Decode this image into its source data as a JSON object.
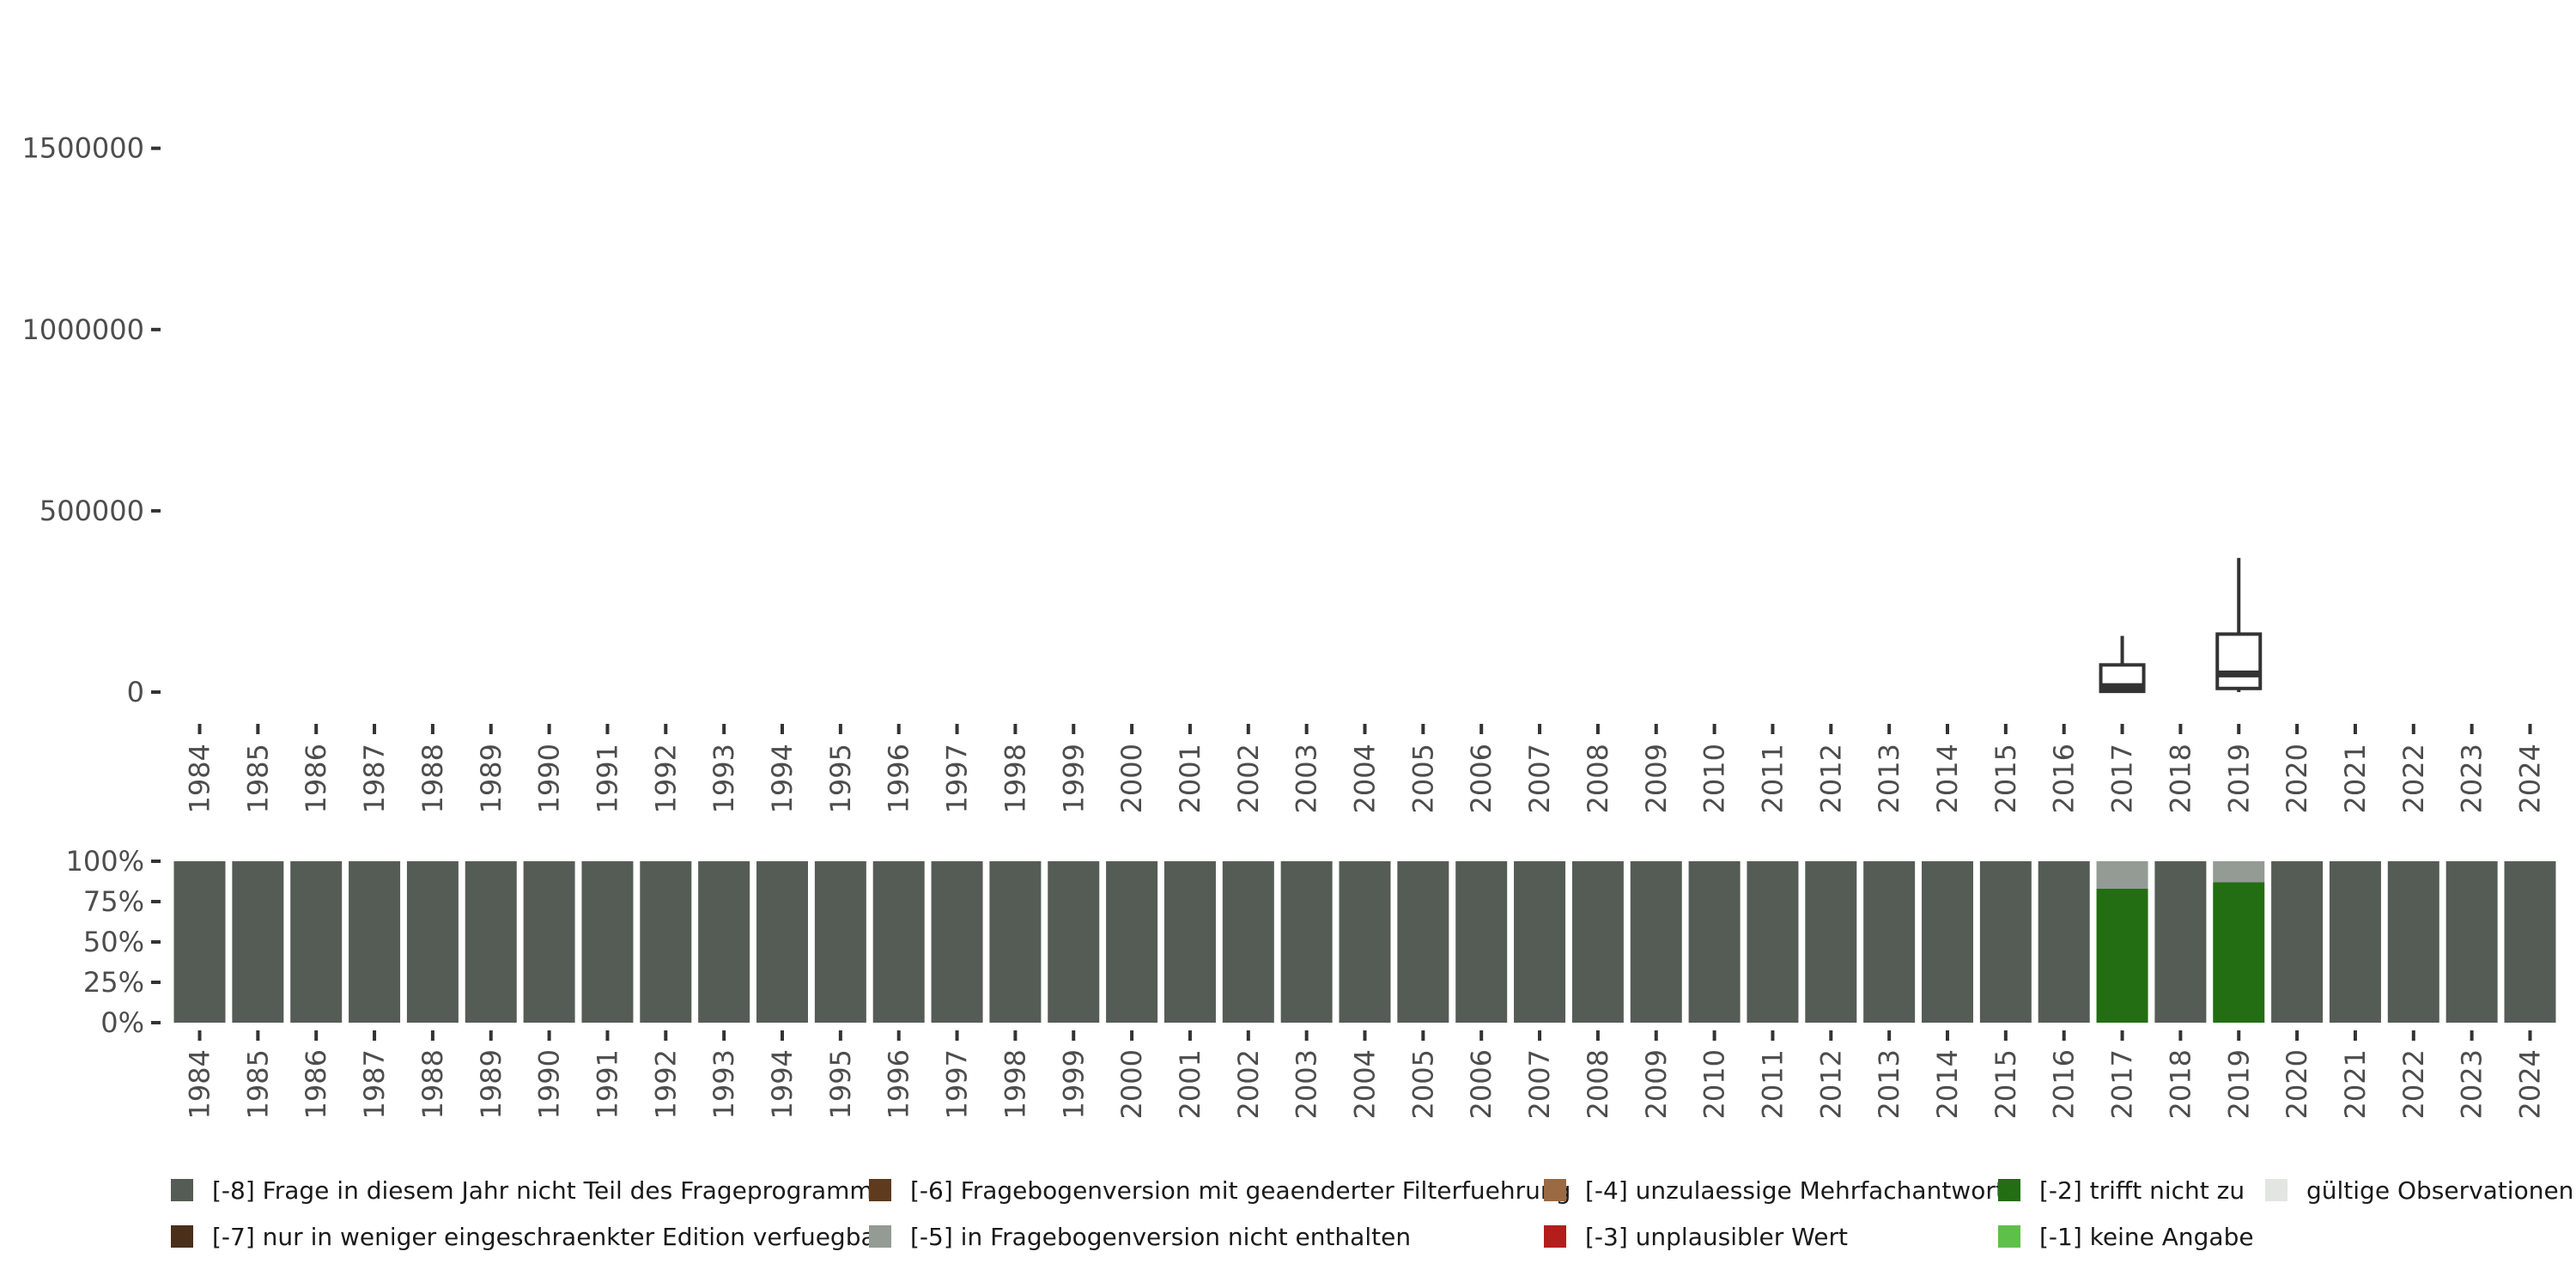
{
  "chart_data": [
    {
      "type": "box",
      "x": [
        "1984",
        "1985",
        "1986",
        "1987",
        "1988",
        "1989",
        "1990",
        "1991",
        "1992",
        "1993",
        "1994",
        "1995",
        "1996",
        "1997",
        "1998",
        "1999",
        "2000",
        "2001",
        "2002",
        "2003",
        "2004",
        "2005",
        "2006",
        "2007",
        "2008",
        "2009",
        "2010",
        "2011",
        "2012",
        "2013",
        "2014",
        "2015",
        "2016",
        "2017",
        "2018",
        "2019",
        "2020",
        "2021",
        "2022",
        "2023",
        "2024"
      ],
      "yticks": [
        "0",
        "500000",
        "1000000",
        "1500000"
      ],
      "ylim": [
        -30000,
        1860000
      ],
      "boxes": [
        {
          "year": "2017",
          "min": 0,
          "q1": 2000,
          "median": 15000,
          "q3": 75000,
          "max": 155000
        },
        {
          "year": "2019",
          "min": 0,
          "q1": 10000,
          "median": 50000,
          "q3": 160000,
          "max": 370000
        }
      ],
      "grid": false,
      "colors": {
        "box": "#333333"
      }
    },
    {
      "type": "bar",
      "stacked": true,
      "x": [
        "1984",
        "1985",
        "1986",
        "1987",
        "1988",
        "1989",
        "1990",
        "1991",
        "1992",
        "1993",
        "1994",
        "1995",
        "1996",
        "1997",
        "1998",
        "1999",
        "2000",
        "2001",
        "2002",
        "2003",
        "2004",
        "2005",
        "2006",
        "2007",
        "2008",
        "2009",
        "2010",
        "2011",
        "2012",
        "2013",
        "2014",
        "2015",
        "2016",
        "2017",
        "2018",
        "2019",
        "2020",
        "2021",
        "2022",
        "2023",
        "2024"
      ],
      "yticks": [
        "0%",
        "25%",
        "50%",
        "75%",
        "100%"
      ],
      "ylim": [
        0,
        1
      ],
      "default_category": "-8",
      "overrides": [
        {
          "year": "2017",
          "segments": [
            {
              "code": "-2",
              "value": 0.83
            },
            {
              "code": "-5",
              "value": 0.17
            }
          ]
        },
        {
          "year": "2019",
          "segments": [
            {
              "code": "-2",
              "value": 0.87
            },
            {
              "code": "-5",
              "value": 0.13
            }
          ]
        }
      ],
      "legend_position": "bottom",
      "legend": [
        {
          "code": "-8",
          "label": "[-8] Frage in diesem Jahr nicht Teil des Frageprogramms",
          "color": "#555c55"
        },
        {
          "code": "-7",
          "label": "[-7] nur in weniger eingeschraenkter Edition verfuegbar",
          "color": "#4a2f1a"
        },
        {
          "code": "-6",
          "label": "[-6] Fragebogenversion mit geaenderter Filterfuehrung",
          "color": "#5e3a1f"
        },
        {
          "code": "-5",
          "label": "[-5] in Fragebogenversion nicht enthalten",
          "color": "#949a94"
        },
        {
          "code": "-4",
          "label": "[-4] unzulaessige Mehrfachantwort",
          "color": "#9a6a45"
        },
        {
          "code": "-3",
          "label": "[-3] unplausibler Wert",
          "color": "#b51c1c"
        },
        {
          "code": "-2",
          "label": "[-2] trifft nicht zu",
          "color": "#236e13"
        },
        {
          "code": "-1",
          "label": "[-1] keine Angabe",
          "color": "#5ec04b"
        },
        {
          "code": "valid",
          "label": "gültige Observationen",
          "color": "#e3e5e3"
        }
      ]
    }
  ]
}
